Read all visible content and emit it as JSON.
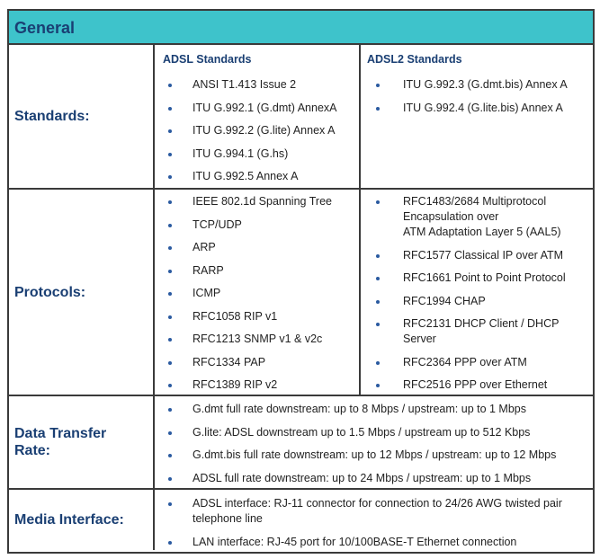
{
  "header": {
    "title": "General"
  },
  "rows": [
    {
      "label": "Standards:",
      "columns": [
        {
          "heading": "ADSL Standards",
          "items": [
            "ANSI T1.413 Issue 2",
            "ITU G.992.1 (G.dmt) AnnexA",
            "ITU G.992.2 (G.lite) Annex A",
            "ITU G.994.1 (G.hs)",
            "ITU G.992.5 Annex A"
          ]
        },
        {
          "heading": "ADSL2 Standards",
          "items": [
            "ITU G.992.3 (G.dmt.bis) Annex A",
            "ITU G.992.4 (G.lite.bis) Annex A"
          ]
        }
      ]
    },
    {
      "label": "Protocols:",
      "columns": [
        {
          "items": [
            "IEEE 802.1d Spanning Tree",
            "TCP/UDP",
            "ARP",
            "RARP",
            "ICMP",
            "RFC1058 RIP v1",
            "RFC1213 SNMP v1 & v2c",
            "RFC1334 PAP",
            "RFC1389 RIP v2"
          ]
        },
        {
          "items": [
            "RFC1483/2684 Multiprotocol\nEncapsulation over\nATM Adaptation Layer 5 (AAL5)",
            "RFC1577 Classical IP over ATM",
            "RFC1661 Point to Point Protocol",
            "RFC1994 CHAP",
            "RFC2131 DHCP Client / DHCP\nServer",
            "RFC2364 PPP over ATM",
            "RFC2516 PPP over Ethernet"
          ]
        }
      ]
    },
    {
      "label": "Data Transfer\nRate:",
      "items": [
        "G.dmt full rate downstream: up to 8 Mbps / upstream: up to 1 Mbps",
        "G.lite: ADSL downstream up to 1.5 Mbps / upstream up to 512 Kbps",
        "G.dmt.bis full rate downstream: up to 12 Mbps / upstream: up to 12 Mbps",
        "ADSL full rate downstream: up to 24 Mbps / upstream: up to 1 Mbps"
      ]
    },
    {
      "label": "Media Interface:",
      "items": [
        "ADSL interface: RJ-11 connector for connection to 24/26 AWG twisted pair\ntelephone line",
        "LAN interface: RJ-45 port for 10/100BASE-T Ethernet connection"
      ]
    }
  ]
}
